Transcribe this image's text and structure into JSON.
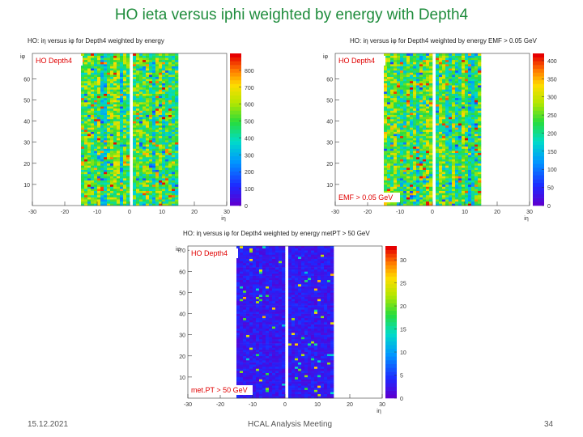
{
  "slide": {
    "title": "HO ieta versus iphi weighted by energy with Depth4",
    "footer_date": "15.12.2021",
    "footer_center": "HCAL Analysis Meeting",
    "footer_page": "34"
  },
  "colors": {
    "title": "#1e8c3c",
    "label": "#e00000"
  },
  "chart_data": [
    {
      "type": "heatmap",
      "title": "HO: iη versus iφ for Depth4 weighted by energy",
      "xlabel": "iη",
      "ylabel": "iφ",
      "xlim": [
        -30,
        30
      ],
      "ylim": [
        0,
        72
      ],
      "x_ticks": [
        "-30",
        "-20",
        "-10",
        "0",
        "10",
        "20",
        "30"
      ],
      "y_ticks": [
        "10",
        "20",
        "30",
        "40",
        "50",
        "60"
      ],
      "label_top": "HO Depth4",
      "label_bottom": "",
      "colorbar": {
        "min": 0,
        "max": 900,
        "ticks": [
          "0",
          "100",
          "200",
          "300",
          "400",
          "500",
          "600",
          "700",
          "800"
        ]
      },
      "occupied_x": [
        -15,
        15
      ],
      "gap_x": [
        0
      ],
      "palette": "rainbow"
    },
    {
      "type": "heatmap",
      "title": "HO: iη versus iφ for Depth4 weighted by energy EMF > 0.05 GeV",
      "xlabel": "iη",
      "ylabel": "iφ",
      "xlim": [
        -30,
        30
      ],
      "ylim": [
        0,
        72
      ],
      "x_ticks": [
        "-30",
        "-20",
        "-10",
        "0",
        "10",
        "20",
        "30"
      ],
      "y_ticks": [
        "10",
        "20",
        "30",
        "40",
        "50",
        "60"
      ],
      "label_top": "HO Depth4",
      "label_bottom": "EMF > 0.05 GeV",
      "colorbar": {
        "min": 0,
        "max": 420,
        "ticks": [
          "0",
          "50",
          "100",
          "150",
          "200",
          "250",
          "300",
          "350",
          "400"
        ]
      },
      "occupied_x": [
        -15,
        15
      ],
      "gap_x": [
        0
      ],
      "palette": "rainbow"
    },
    {
      "type": "heatmap",
      "title": "HO: iη versus iφ for Depth4 weighted by energy metPT > 50 GeV",
      "xlabel": "iη",
      "ylabel": "iφ",
      "xlim": [
        -30,
        30
      ],
      "ylim": [
        0,
        72
      ],
      "x_ticks": [
        "-30",
        "-20",
        "-10",
        "0",
        "10",
        "20",
        "30"
      ],
      "y_ticks": [
        "10",
        "20",
        "30",
        "40",
        "50",
        "60",
        "70"
      ],
      "label_top": "HO Depth4",
      "label_bottom": "met.PT > 50 GeV",
      "colorbar": {
        "min": 0,
        "max": 33,
        "ticks": [
          "0",
          "5",
          "10",
          "15",
          "20",
          "25",
          "30"
        ]
      },
      "occupied_x": [
        -15,
        15
      ],
      "gap_x": [
        0
      ],
      "palette": "dark"
    }
  ]
}
